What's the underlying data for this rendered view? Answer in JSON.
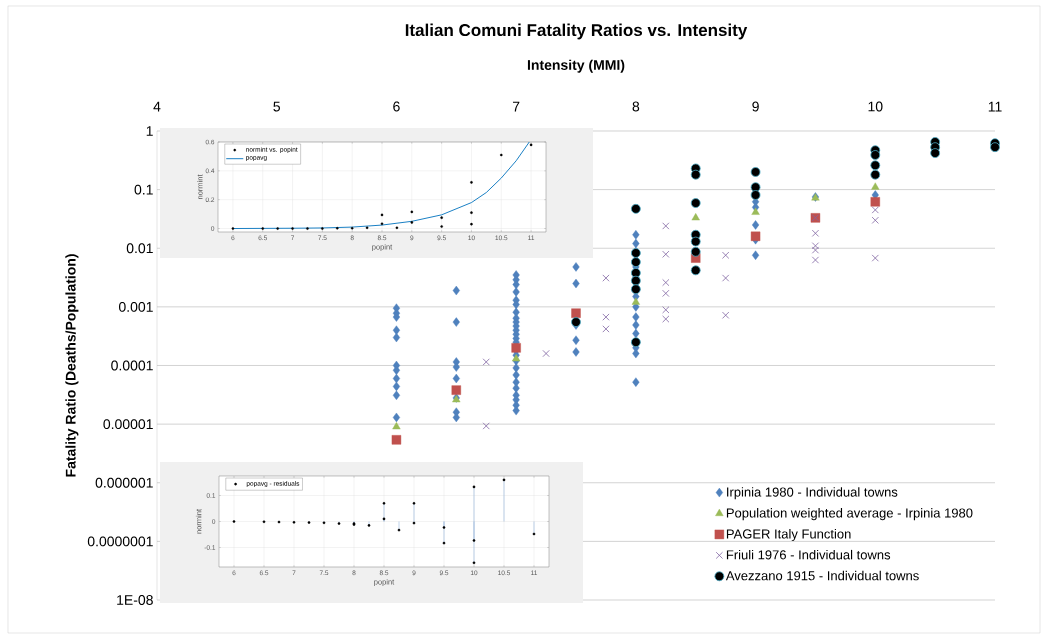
{
  "chart_data": [
    {
      "type": "scatter",
      "title": "Italian Comuni Fatality Ratios vs. Intensity",
      "xlabel": "Intensity (MMI)",
      "ylabel": "Fatality Ratio (Deaths/Population)",
      "log": "y",
      "grid": "y",
      "legend": "bottom right",
      "xlim": [
        4,
        11
      ],
      "xticks": [
        4,
        5,
        6,
        7,
        8,
        9,
        10,
        11
      ],
      "ylim": [
        1e-08,
        1
      ],
      "yticks": [
        1,
        0.1,
        0.01,
        0.001,
        0.0001,
        {
          "value": 1e-05,
          "label": "0.00001"
        },
        {
          "value": 1e-06,
          "label": "0.000001"
        },
        {
          "value": 1e-07,
          "label": "0.0000001"
        },
        {
          "value": 1e-08,
          "label": "1E-08"
        }
      ],
      "series": [
        {
          "name": "Irpinia 1980 - Individual towns",
          "color": "#4f81bd",
          "marker": "diamond",
          "x": [
            6,
            6,
            6,
            6,
            6,
            6,
            6,
            6,
            6,
            6,
            6,
            6.5,
            6.5,
            6.5,
            6.5,
            6.5,
            6.5,
            6.5,
            6.5,
            7,
            7,
            7,
            7,
            7,
            7,
            7,
            7,
            7,
            7,
            7,
            7,
            7,
            7,
            7,
            7,
            7,
            7,
            7,
            7,
            7,
            7,
            7,
            7,
            7,
            7.5,
            7.5,
            7.5,
            7.5,
            7.5,
            8,
            8,
            8,
            8,
            8,
            8,
            8,
            8,
            8,
            8,
            8,
            8,
            8,
            8,
            8,
            9,
            9,
            9,
            9,
            9,
            9.5,
            10
          ],
          "values": [
            0.00095,
            0.00078,
            0.00067,
            0.0004,
            0.0003,
            0.0001,
            8.3e-05,
            6e-05,
            4.4e-05,
            3.1e-05,
            1.3e-05,
            0.0019,
            0.00055,
            0.000115,
            9.4e-05,
            6e-05,
            2.8e-05,
            1.6e-05,
            1.3e-05,
            0.0035,
            0.0029,
            0.0024,
            0.0018,
            0.0013,
            0.0011,
            0.00081,
            0.00064,
            0.00055,
            0.00047,
            0.0004,
            0.00034,
            0.00029,
            0.00025,
            0.00018,
            0.00015,
            0.00012,
            9.1e-05,
            6.9e-05,
            5.2e-05,
            4.1e-05,
            3.1e-05,
            2.6e-05,
            2.1e-05,
            1.7e-05,
            0.0048,
            0.0025,
            0.00049,
            0.00027,
            0.00017,
            0.017,
            0.012,
            0.0087,
            0.0063,
            0.0048,
            0.0032,
            0.0022,
            0.0015,
            0.001,
            0.00067,
            0.00049,
            0.00035,
            0.0002,
            0.00016,
            5.2e-05,
            0.062,
            0.05,
            0.025,
            0.014,
            0.0076,
            0.075,
            0.081
          ]
        },
        {
          "name": "Population weighted average - Irpinia 1980",
          "color": "#9bbb59",
          "marker": "triangle",
          "x": [
            6,
            6.5,
            7,
            8,
            8.5,
            9,
            9.5,
            10
          ],
          "values": [
            9e-06,
            2.6e-05,
            0.00013,
            0.0012,
            0.033,
            0.041,
            0.072,
            0.11
          ]
        },
        {
          "name": "PAGER Italy Function",
          "color": "#c0504d",
          "marker": "square",
          "x": [
            6,
            6.5,
            7,
            7.5,
            8.5,
            9,
            9.5,
            10
          ],
          "values": [
            5.4e-06,
            3.8e-05,
            0.0002,
            0.00078,
            0.0068,
            0.016,
            0.033,
            0.062
          ]
        },
        {
          "name": "Friuli 1976 - Individual towns",
          "color": "#8064a2",
          "marker": "cross",
          "x": [
            6.75,
            6.75,
            7.25,
            7.75,
            7.75,
            7.75,
            8.25,
            8.25,
            8.25,
            8.25,
            8.25,
            8.25,
            8.75,
            8.75,
            8.75,
            9.5,
            9.5,
            9.5,
            9.5,
            9.5,
            10,
            10,
            10
          ],
          "values": [
            0.000115,
            9.3e-06,
            0.00016,
            0.0031,
            0.00067,
            0.00042,
            0.024,
            0.0079,
            0.0026,
            0.0017,
            0.00089,
            0.00062,
            0.0076,
            0.0031,
            0.00072,
            0.033,
            0.018,
            0.011,
            0.0093,
            0.0063,
            0.045,
            0.03,
            0.0068
          ]
        },
        {
          "name": "Avezzano 1915 - Individual towns",
          "color": "#000000",
          "marker": "circle",
          "x": [
            7.5,
            8,
            8,
            8,
            8,
            8,
            8,
            8,
            8.5,
            8.5,
            8.5,
            8.5,
            8.5,
            8.5,
            8.5,
            9,
            9,
            9,
            10,
            10,
            10,
            10,
            10.5,
            10.5,
            10.5,
            11,
            11
          ],
          "values": [
            0.00055,
            0.047,
            0.0083,
            0.0058,
            0.0038,
            0.0028,
            0.002,
            0.00025,
            0.23,
            0.18,
            0.059,
            0.017,
            0.013,
            0.0087,
            0.0042,
            0.2,
            0.11,
            0.081,
            0.47,
            0.39,
            0.26,
            0.18,
            0.65,
            0.53,
            0.42,
            0.62,
            0.53
          ]
        }
      ]
    },
    {
      "type": "scatter",
      "xlabel": "popint",
      "ylabel": "normint",
      "grid": true,
      "legend": "top left",
      "xlim": [
        5.75,
        11.25
      ],
      "xticks": [
        6,
        6.5,
        7,
        7.5,
        8,
        8.5,
        9,
        9.5,
        10,
        10.5,
        11
      ],
      "ylim": [
        -0.024,
        0.6
      ],
      "yticks": [
        0,
        0.2,
        0.4,
        0.6
      ],
      "series": [
        {
          "name": "normint vs. popint",
          "color": "#000000",
          "marker": "circle",
          "x": [
            6,
            6.5,
            6.75,
            7,
            7.25,
            7.5,
            7.75,
            8,
            8.25,
            8.5,
            8.5,
            8.75,
            9,
            9,
            9.5,
            9.5,
            10,
            10,
            10,
            10.5,
            11
          ],
          "values": [
            0,
            0,
            0,
            0,
            0,
            0,
            0.002,
            0.002,
            0.005,
            0.094,
            0.033,
            0.005,
            0.115,
            0.042,
            0.075,
            0.014,
            0.32,
            0.11,
            0.03,
            0.51,
            0.58
          ]
        },
        {
          "name": "popavg",
          "type": "line",
          "color": "#0072bd",
          "marker": "none",
          "x": [
            6,
            6.5,
            7,
            7.5,
            8,
            8.5,
            9,
            9.5,
            10,
            10.25,
            10.5,
            10.75,
            10.97
          ],
          "values": [
            0,
            0.001,
            0.002,
            0.004,
            0.01,
            0.024,
            0.05,
            0.095,
            0.18,
            0.25,
            0.35,
            0.47,
            0.6
          ]
        }
      ]
    },
    {
      "type": "lollipop",
      "xlabel": "popint",
      "ylabel": "normint",
      "grid": true,
      "legend": "top left",
      "xlim": [
        5.75,
        11.25
      ],
      "xticks": [
        6,
        6.5,
        7,
        7.5,
        8,
        8.5,
        9,
        9.5,
        10,
        10.5,
        11
      ],
      "ylim": [
        -0.175,
        0.175
      ],
      "yticks": [
        -0.1,
        0,
        0.1
      ],
      "series": [
        {
          "name": "popavg - residuals",
          "color": "#000000",
          "marker": "circle",
          "x": [
            6,
            6.5,
            6.75,
            7,
            7.25,
            7.5,
            7.75,
            8,
            8,
            8.25,
            8.5,
            8.5,
            8.75,
            9,
            9,
            9.5,
            9.5,
            10,
            10,
            10,
            10.5,
            11
          ],
          "values": [
            0,
            -0.001,
            -0.002,
            -0.003,
            -0.004,
            -0.005,
            -0.008,
            -0.008,
            -0.012,
            -0.015,
            0.07,
            0.01,
            -0.033,
            0.07,
            -0.006,
            -0.023,
            -0.083,
            0.133,
            -0.073,
            -0.159,
            0.16,
            -0.048
          ]
        }
      ]
    }
  ]
}
